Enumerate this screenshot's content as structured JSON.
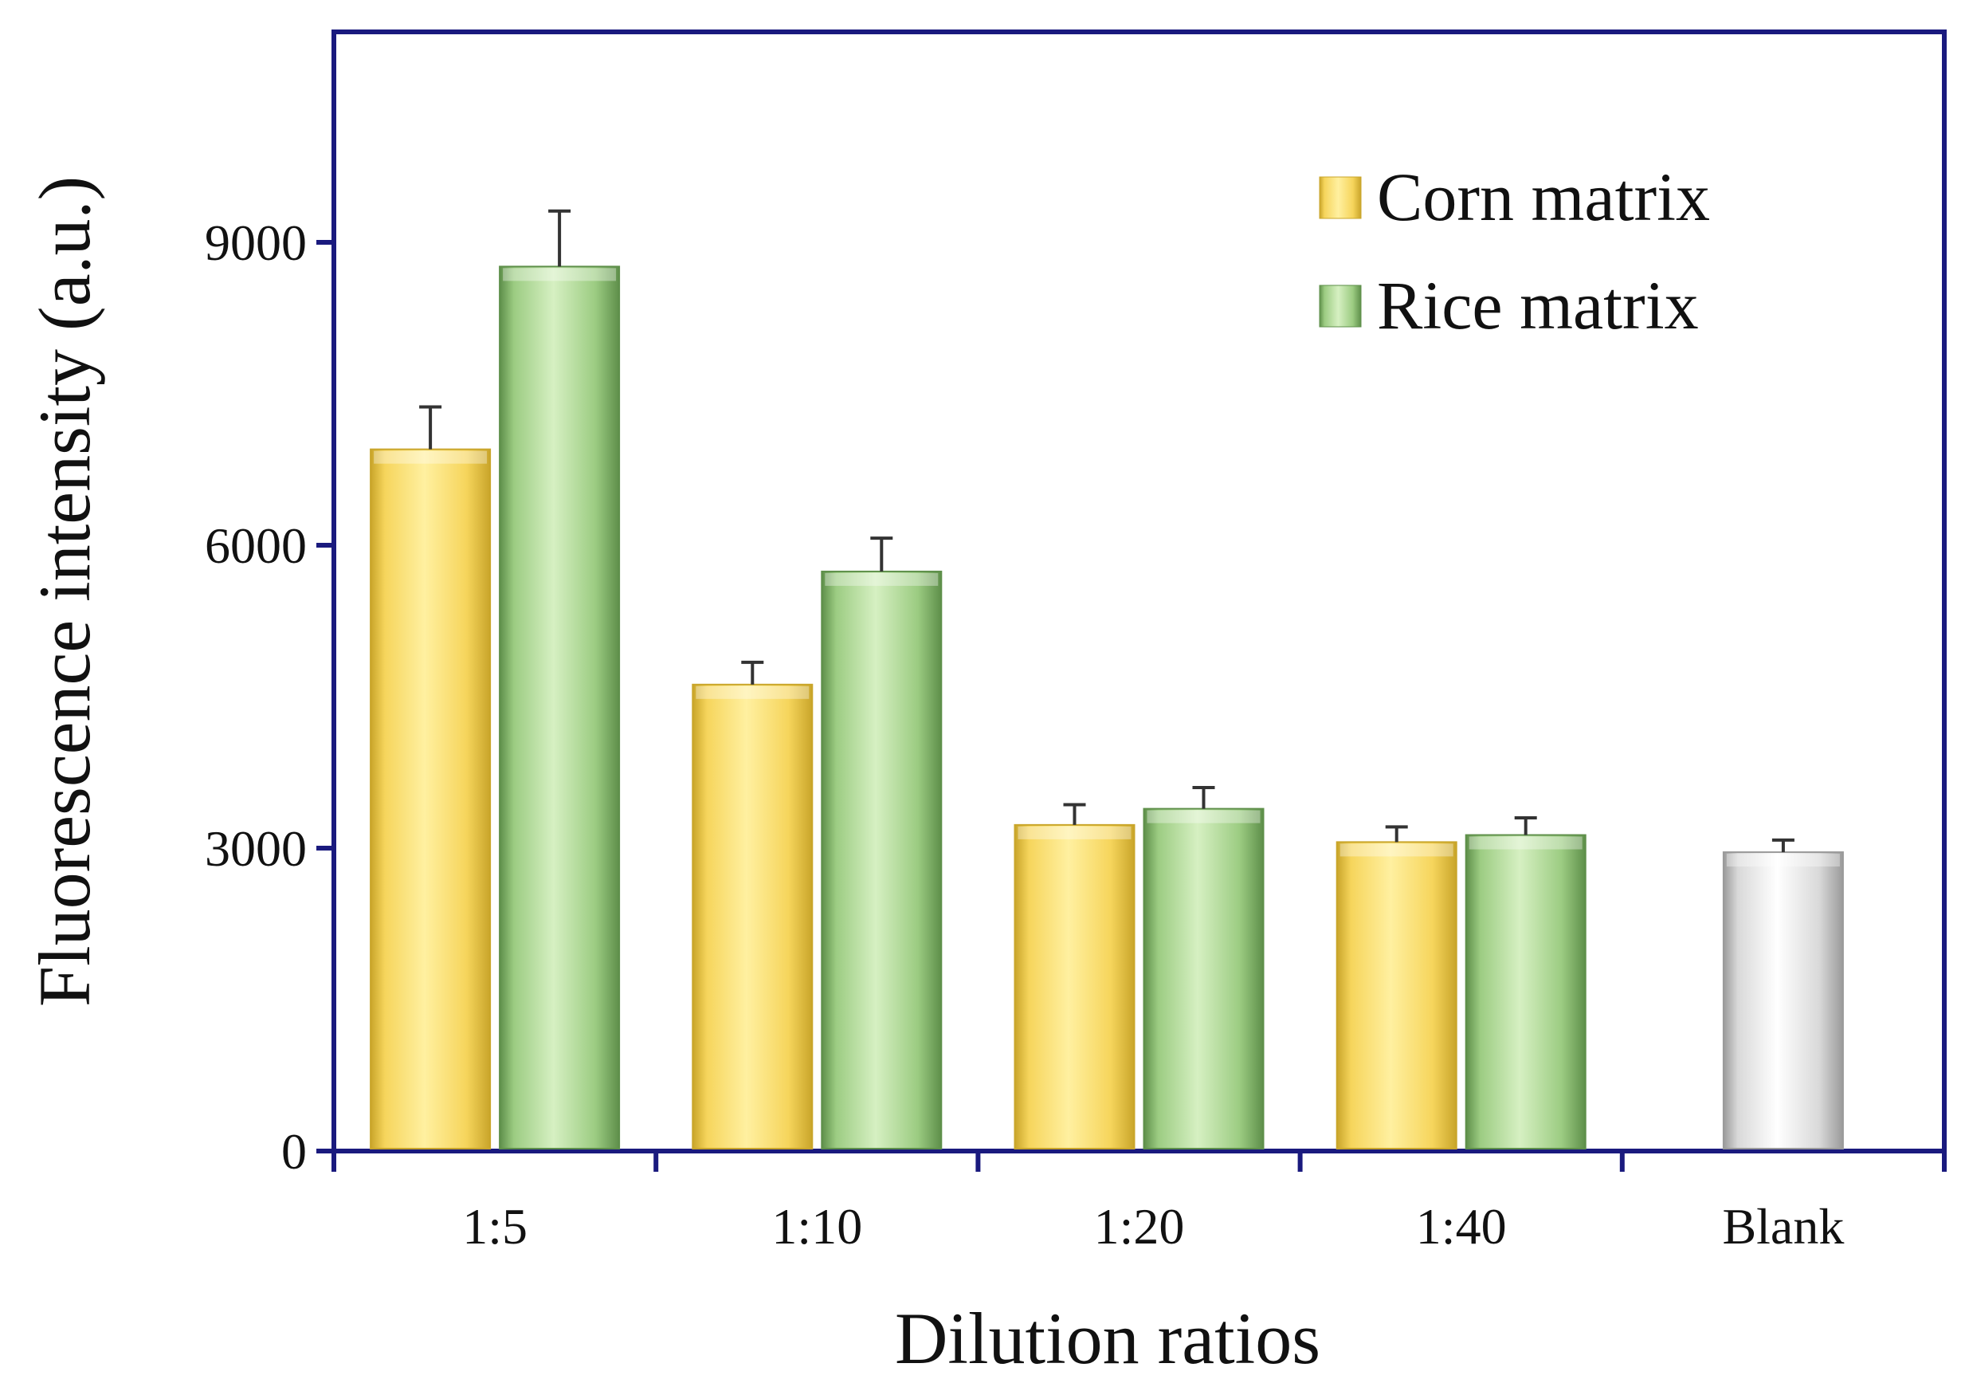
{
  "chart_data": {
    "type": "bar",
    "title": "",
    "xlabel": "Dilution ratios",
    "ylabel": "Fluorescence intensity (a.u.)",
    "ylim": [
      0,
      11000
    ],
    "yticks": [
      0,
      3000,
      6000,
      9000
    ],
    "ytick_labels": [
      "0",
      "3000",
      "6000",
      "9000"
    ],
    "categories": [
      "1:5",
      "1:10",
      "1:20",
      "1:40",
      "Blank"
    ],
    "series": [
      {
        "name": "Corn matrix",
        "color": "#f6d55c",
        "values": [
          6950,
          4620,
          3230,
          3060,
          null
        ],
        "errors": [
          420,
          220,
          200,
          150,
          null
        ]
      },
      {
        "name": "Rice matrix",
        "color": "#9ccc82",
        "values": [
          8760,
          5740,
          3390,
          3130,
          null
        ],
        "errors": [
          550,
          330,
          210,
          170,
          null
        ]
      },
      {
        "name": "Blank",
        "color": "#d9d9d9",
        "values": [
          null,
          null,
          null,
          null,
          2960
        ],
        "errors": [
          null,
          null,
          null,
          null,
          120
        ]
      }
    ],
    "legend": {
      "position": "top-right",
      "entries": [
        "Corn matrix",
        "Rice matrix"
      ]
    },
    "grid": false
  },
  "colors": {
    "axis": "#1a1a7e",
    "corn_light": "#fff0a0",
    "corn_dark": "#c9a52a",
    "rice_light": "#d6f0c2",
    "rice_dark": "#5e8f4a",
    "blank_light": "#ffffff",
    "blank_dark": "#9a9a9a"
  }
}
